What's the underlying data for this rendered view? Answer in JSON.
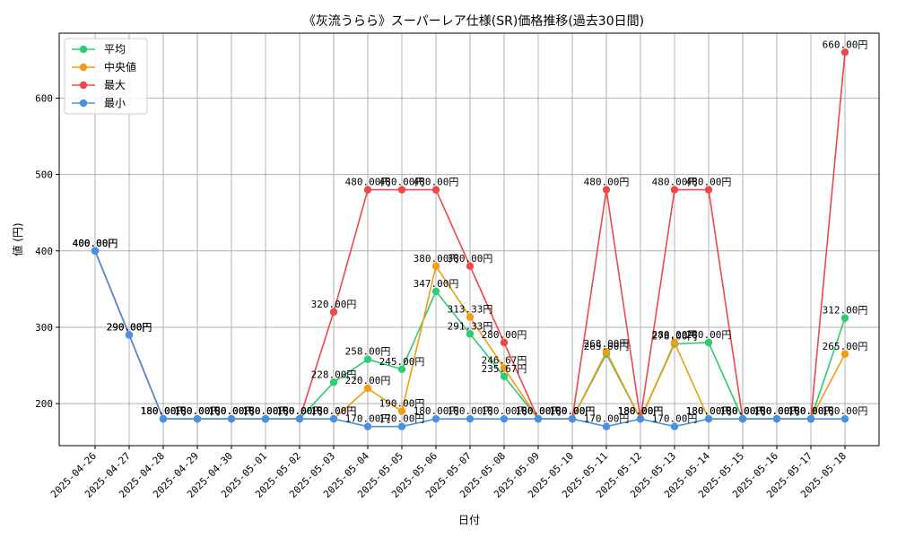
{
  "chart_data": {
    "type": "line",
    "title": "《灰流うらら》スーパーレア仕様(SR)価格推移(過去30日間)",
    "xlabel": "日付",
    "ylabel": "値 (円)",
    "ylim": [
      145,
      685
    ],
    "yticks": [
      200,
      300,
      400,
      500,
      600
    ],
    "grid": true,
    "legend_position": "top-left",
    "value_suffix": "円",
    "categories": [
      "2025-04-26",
      "2025-04-27",
      "2025-04-28",
      "2025-04-29",
      "2025-04-30",
      "2025-05-01",
      "2025-05-02",
      "2025-05-03",
      "2025-05-04",
      "2025-05-05",
      "2025-05-06",
      "2025-05-07",
      "2025-05-08",
      "2025-05-09",
      "2025-05-10",
      "2025-05-11",
      "2025-05-12",
      "2025-05-13",
      "2025-05-14",
      "2025-05-15",
      "2025-05-16",
      "2025-05-17",
      "2025-05-18"
    ],
    "series": [
      {
        "name": "平均",
        "color": "#2ecc71",
        "values": [
          400,
          290,
          180,
          180,
          180,
          180,
          180,
          228,
          258,
          245,
          347,
          291.33,
          235.67,
          180,
          180,
          265,
          180,
          278,
          280,
          180,
          180,
          180,
          312
        ]
      },
      {
        "name": "中央値",
        "color": "#f39c12",
        "values": [
          400,
          290,
          180,
          180,
          180,
          180,
          180,
          180,
          220,
          190,
          380,
          313.33,
          246.67,
          180,
          180,
          268,
          180,
          280,
          180,
          180,
          180,
          180,
          265
        ]
      },
      {
        "name": "最大",
        "color": "#f04848",
        "values": [
          400,
          290,
          180,
          180,
          180,
          180,
          180,
          320,
          480,
          480,
          480,
          380,
          280,
          180,
          180,
          480,
          180,
          480,
          480,
          180,
          180,
          180,
          660
        ]
      },
      {
        "name": "最小",
        "color": "#4a90e2",
        "values": [
          400,
          290,
          180,
          180,
          180,
          180,
          180,
          180,
          170,
          170,
          180,
          180,
          180,
          180,
          180,
          170,
          180,
          170,
          180,
          180,
          180,
          180,
          180
        ]
      }
    ]
  }
}
